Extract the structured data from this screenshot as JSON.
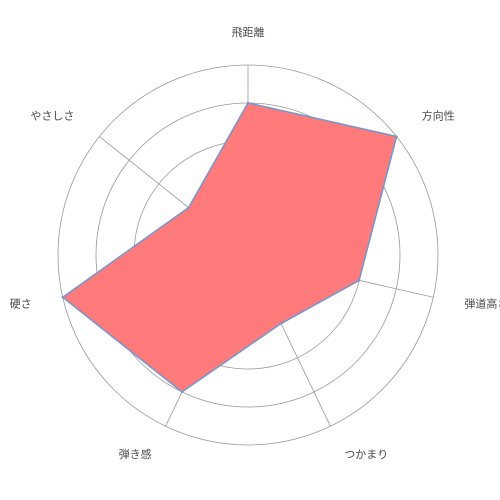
{
  "chart_data": {
    "type": "radar",
    "categories": [
      "飛距離",
      "方向性",
      "弾道高さ",
      "つかまり",
      "弾き感",
      "硬さ",
      "やさしさ"
    ],
    "values": [
      4,
      5,
      3,
      2,
      4,
      5,
      2
    ],
    "max": 5,
    "rings": 5,
    "grid": true,
    "fill_color": "#ff7b7b",
    "line_color": "#7c94c8",
    "grid_color": "#999999"
  }
}
